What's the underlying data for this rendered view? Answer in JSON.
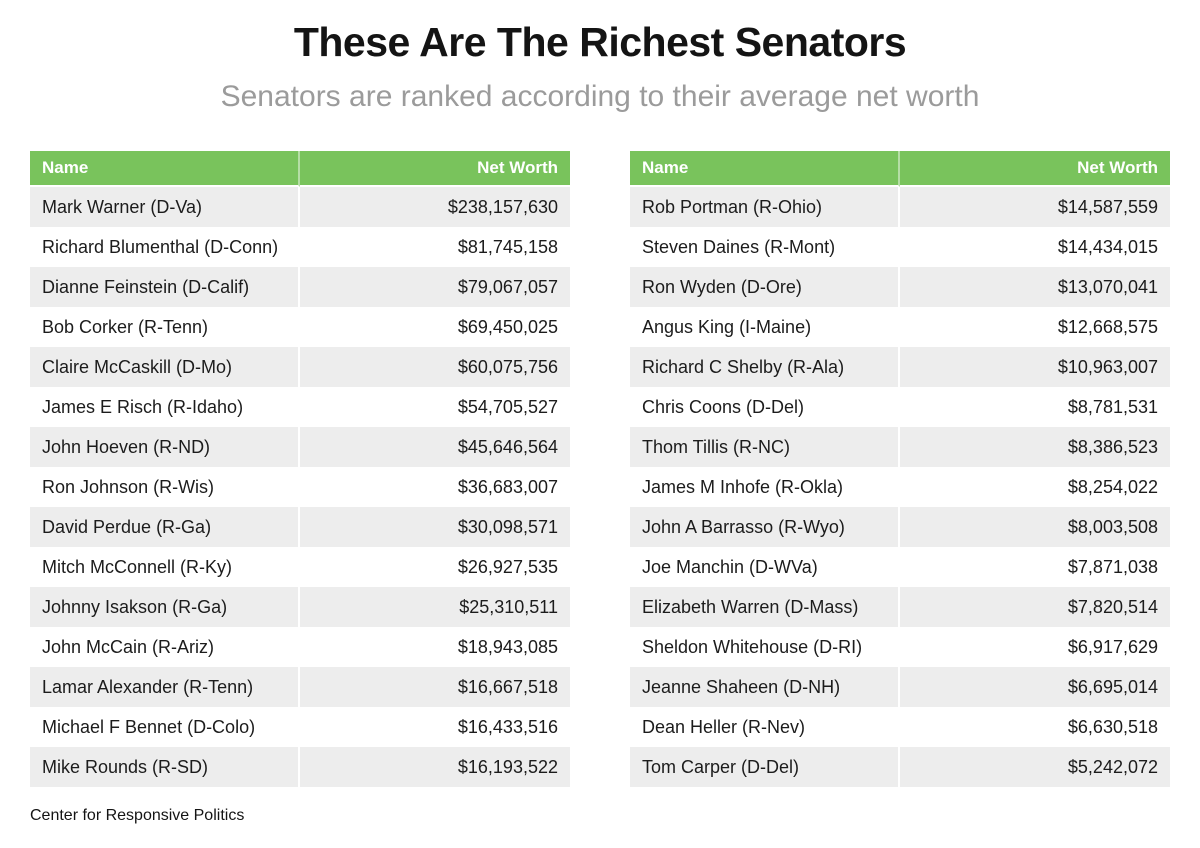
{
  "header": {
    "title": "These Are The Richest Senators",
    "subtitle": "Senators are ranked according to their average net worth"
  },
  "columns": {
    "name": "Name",
    "net_worth": "Net Worth"
  },
  "footer": {
    "source": "Center for Responsive Politics"
  },
  "colors": {
    "header_green": "#79c35c",
    "row_alt_gray": "#ededed",
    "subtitle_gray": "#9b9b9b",
    "body_text": "#1c1c1c",
    "header_text": "#ffffff"
  },
  "chart_data": {
    "type": "table",
    "title": "These Are The Richest Senators",
    "subtitle": "Senators are ranked according to their average net worth",
    "source": "Center for Responsive Politics",
    "columns": [
      "Name",
      "Net Worth"
    ],
    "tables": [
      {
        "rows": [
          {
            "name": "Mark Warner (D-Va)",
            "net_worth": "$238,157,630"
          },
          {
            "name": "Richard Blumenthal (D-Conn)",
            "net_worth": "$81,745,158"
          },
          {
            "name": "Dianne Feinstein (D-Calif)",
            "net_worth": "$79,067,057"
          },
          {
            "name": "Bob Corker (R-Tenn)",
            "net_worth": "$69,450,025"
          },
          {
            "name": "Claire McCaskill (D-Mo)",
            "net_worth": "$60,075,756"
          },
          {
            "name": "James E Risch (R-Idaho)",
            "net_worth": "$54,705,527"
          },
          {
            "name": "John Hoeven (R-ND)",
            "net_worth": "$45,646,564"
          },
          {
            "name": "Ron Johnson (R-Wis)",
            "net_worth": "$36,683,007"
          },
          {
            "name": "David Perdue (R-Ga)",
            "net_worth": "$30,098,571"
          },
          {
            "name": "Mitch McConnell (R-Ky)",
            "net_worth": "$26,927,535"
          },
          {
            "name": "Johnny Isakson (R-Ga)",
            "net_worth": "$25,310,511"
          },
          {
            "name": "John McCain (R-Ariz)",
            "net_worth": "$18,943,085"
          },
          {
            "name": "Lamar Alexander (R-Tenn)",
            "net_worth": "$16,667,518"
          },
          {
            "name": "Michael F Bennet (D-Colo)",
            "net_worth": "$16,433,516"
          },
          {
            "name": "Mike Rounds (R-SD)",
            "net_worth": "$16,193,522"
          }
        ]
      },
      {
        "rows": [
          {
            "name": "Rob Portman (R-Ohio)",
            "net_worth": "$14,587,559"
          },
          {
            "name": "Steven Daines (R-Mont)",
            "net_worth": "$14,434,015"
          },
          {
            "name": "Ron Wyden (D-Ore)",
            "net_worth": "$13,070,041"
          },
          {
            "name": "Angus King (I-Maine)",
            "net_worth": "$12,668,575"
          },
          {
            "name": "Richard C Shelby (R-Ala)",
            "net_worth": "$10,963,007"
          },
          {
            "name": "Chris Coons (D-Del)",
            "net_worth": "$8,781,531"
          },
          {
            "name": "Thom Tillis (R-NC)",
            "net_worth": "$8,386,523"
          },
          {
            "name": "James M Inhofe (R-Okla)",
            "net_worth": "$8,254,022"
          },
          {
            "name": "John A Barrasso (R-Wyo)",
            "net_worth": "$8,003,508"
          },
          {
            "name": "Joe Manchin (D-WVa)",
            "net_worth": "$7,871,038"
          },
          {
            "name": "Elizabeth Warren (D-Mass)",
            "net_worth": "$7,820,514"
          },
          {
            "name": "Sheldon Whitehouse (D-RI)",
            "net_worth": "$6,917,629"
          },
          {
            "name": "Jeanne Shaheen (D-NH)",
            "net_worth": "$6,695,014"
          },
          {
            "name": "Dean Heller (R-Nev)",
            "net_worth": "$6,630,518"
          },
          {
            "name": "Tom Carper (D-Del)",
            "net_worth": "$5,242,072"
          }
        ]
      }
    ]
  }
}
